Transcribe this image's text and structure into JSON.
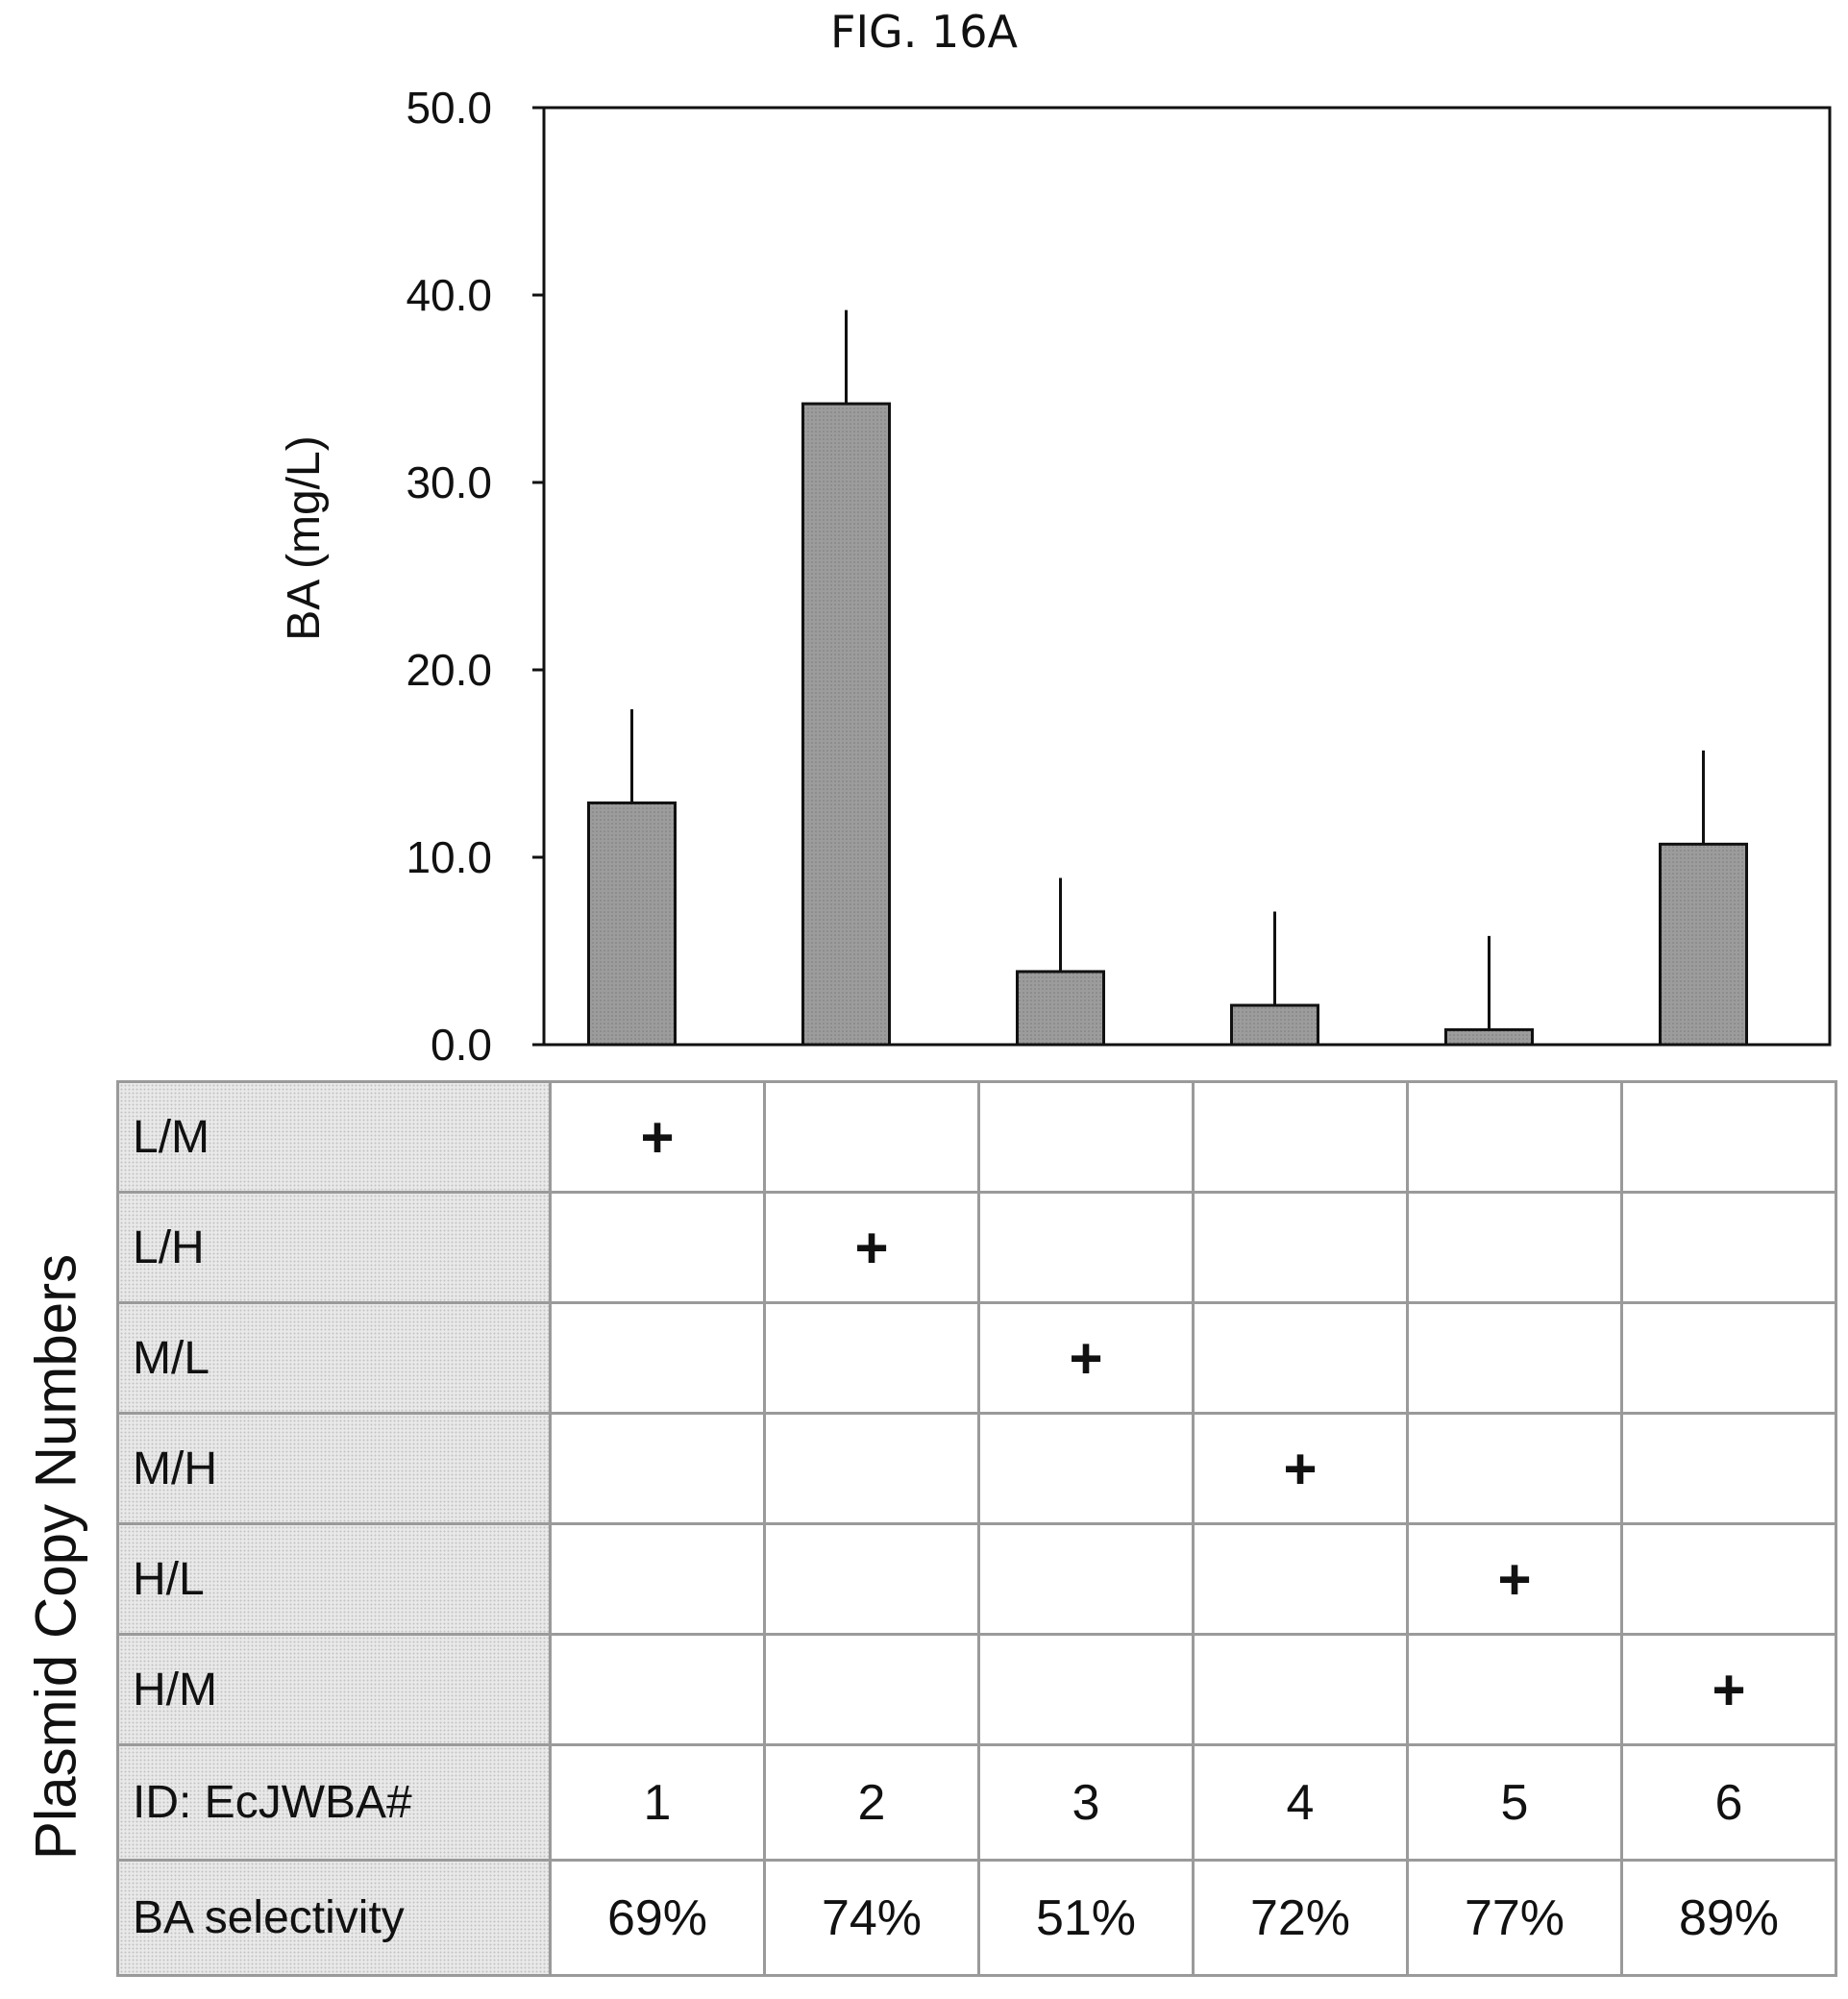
{
  "figure": {
    "title": "FIG. 16A"
  },
  "chart_data": {
    "type": "bar",
    "ylabel": "BA (mg/L)",
    "ylim": [
      0,
      50
    ],
    "yticks": [
      "0.0",
      "10.0",
      "20.0",
      "30.0",
      "40.0",
      "50.0"
    ],
    "categories": [
      "1",
      "2",
      "3",
      "4",
      "5",
      "6"
    ],
    "values": [
      12.9,
      34.2,
      3.9,
      2.1,
      0.8,
      10.7
    ],
    "error_upper": [
      5.0,
      5.0,
      5.0,
      5.0,
      5.0,
      5.0
    ],
    "bar_color": "#9c9c9c",
    "grid": false
  },
  "table": {
    "side_label": "Plasmid Copy Numbers",
    "rows": [
      {
        "label": "L/M",
        "cells": [
          "+",
          "",
          "",
          "",
          "",
          ""
        ]
      },
      {
        "label": "L/H",
        "cells": [
          "",
          "+",
          "",
          "",
          "",
          ""
        ]
      },
      {
        "label": "M/L",
        "cells": [
          "",
          "",
          "+",
          "",
          "",
          ""
        ]
      },
      {
        "label": "M/H",
        "cells": [
          "",
          "",
          "",
          "+",
          "",
          ""
        ]
      },
      {
        "label": "H/L",
        "cells": [
          "",
          "",
          "",
          "",
          "+",
          ""
        ]
      },
      {
        "label": "H/M",
        "cells": [
          "",
          "",
          "",
          "",
          "",
          "+"
        ]
      },
      {
        "label": "ID: EcJWBA#",
        "cells": [
          "1",
          "2",
          "3",
          "4",
          "5",
          "6"
        ]
      },
      {
        "label": "BA selectivity",
        "cells": [
          "69%",
          "74%",
          "51%",
          "72%",
          "77%",
          "89%"
        ]
      }
    ]
  }
}
